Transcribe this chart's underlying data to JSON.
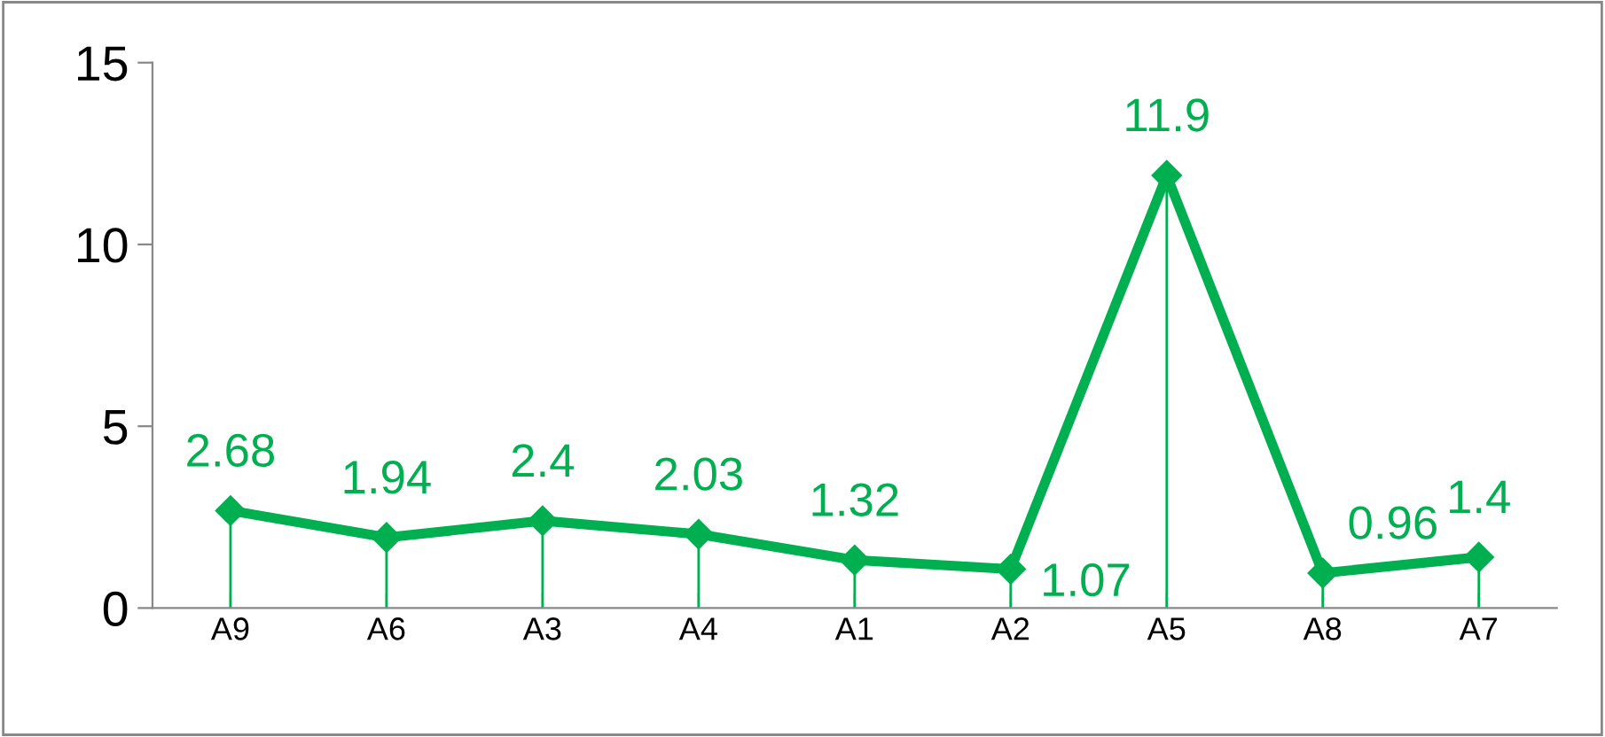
{
  "chart_data": {
    "type": "line",
    "categories": [
      "A9",
      "A6",
      "A3",
      "A4",
      "A1",
      "A2",
      "A5",
      "A8",
      "A7"
    ],
    "series": [
      {
        "color": "#00b050",
        "values": [
          2.68,
          1.94,
          2.4,
          2.03,
          1.32,
          1.07,
          11.9,
          0.96,
          1.4
        ]
      }
    ],
    "ylim": [
      0,
      15
    ],
    "yticks": [
      0,
      5,
      10,
      15
    ],
    "grid": false,
    "legend": false,
    "marker": "diamond",
    "line_style": "solid",
    "data_labels": true
  }
}
